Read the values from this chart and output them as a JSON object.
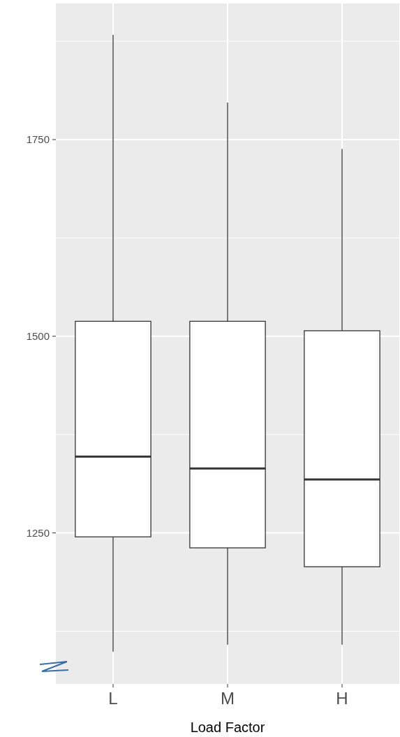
{
  "chart_data": {
    "type": "box",
    "xlabel": "Load Factor",
    "categories": [
      "L",
      "M",
      "H"
    ],
    "boxes": [
      {
        "low": 1099,
        "q1": 1245,
        "median": 1347,
        "q3": 1519,
        "high": 1883
      },
      {
        "low": 1108,
        "q1": 1231,
        "median": 1332,
        "q3": 1519,
        "high": 1797
      },
      {
        "low": 1108,
        "q1": 1207,
        "median": 1318,
        "q3": 1507,
        "high": 1738
      }
    ],
    "ylim": [
      1058,
      1923
    ],
    "yticks": [
      1250,
      1500,
      1750
    ],
    "grid": true
  }
}
